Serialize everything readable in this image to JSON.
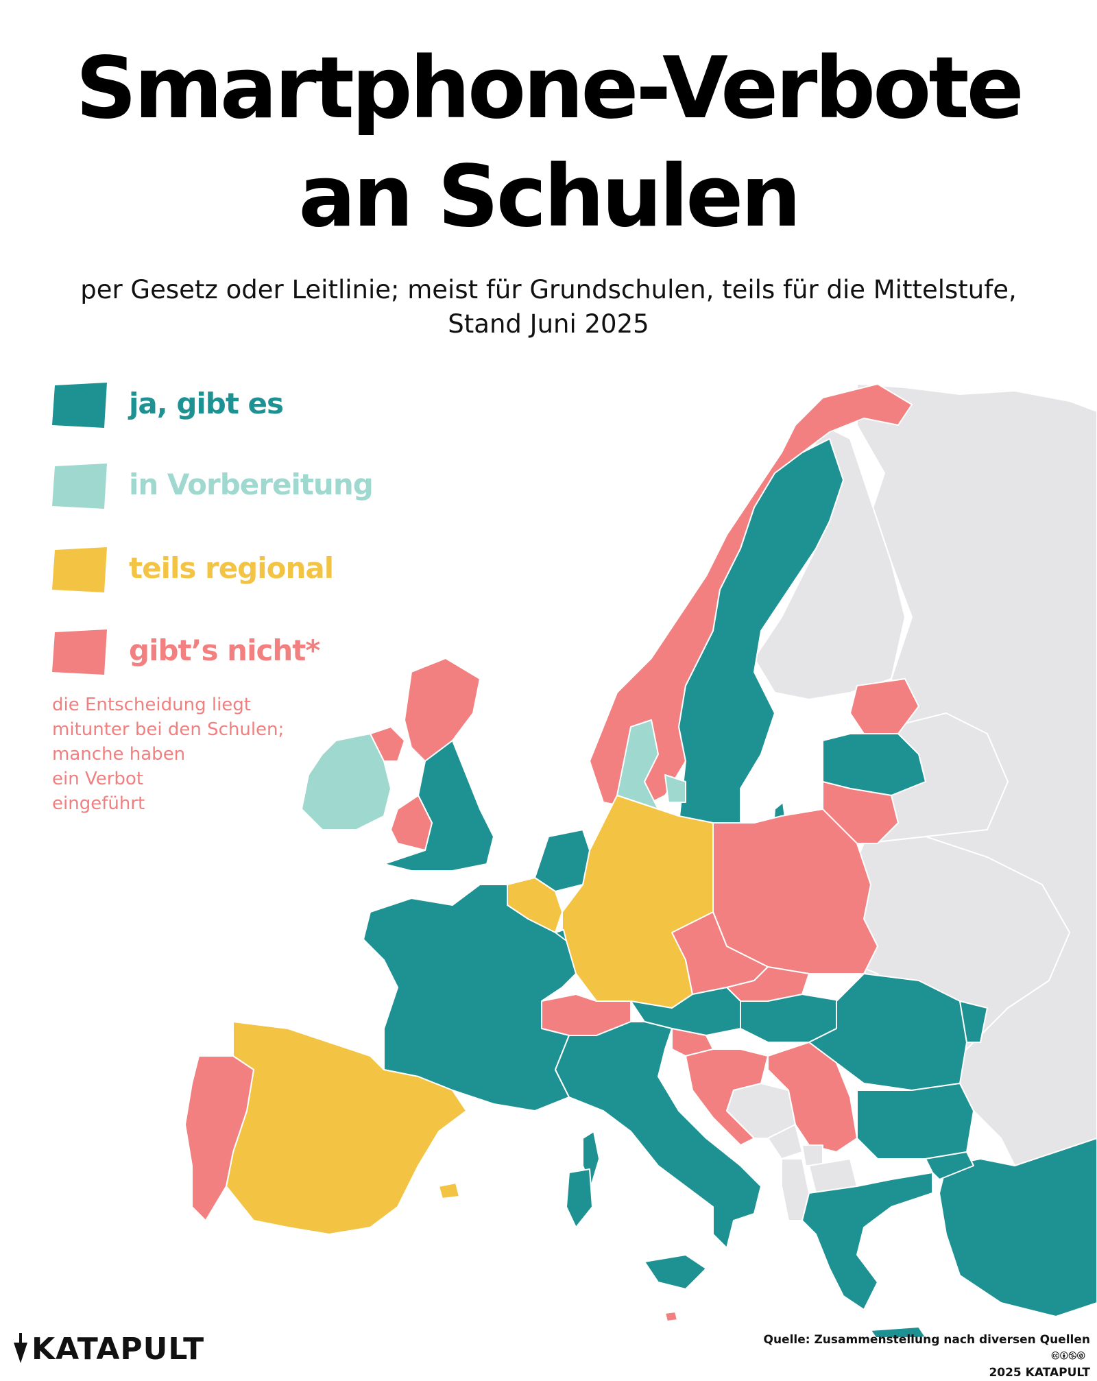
{
  "title": {
    "line1": "Smartphone-Verbote",
    "line2": "an Schulen"
  },
  "subtitle": {
    "line1": "per Gesetz oder Leitlinie; meist für Grundschulen, teils für die Mittelstufe,",
    "line2": "Stand Juni 2025"
  },
  "legend": [
    {
      "label": "ja, gibt es",
      "color": "#1e9193",
      "category": "ja"
    },
    {
      "label": "in Vorbereitung",
      "color": "#9fd8cf",
      "category": "vorbereitung"
    },
    {
      "label": "teils regional",
      "color": "#f3c443",
      "category": "regional"
    },
    {
      "label": "gibt’s nicht*",
      "color": "#f28080",
      "category": "nicht"
    }
  ],
  "legend_note": {
    "lines": [
      "die Entscheidung liegt",
      "mitunter bei den Schulen;",
      "manche haben",
      "ein Verbot",
      "eingeführt"
    ]
  },
  "colors": {
    "ja": "#1e9193",
    "vorbereitung": "#9fd8cf",
    "regional": "#f3c443",
    "nicht": "#f28080",
    "no_data": "#e5e5e8",
    "border": "#ffffff",
    "background": "#ffffff"
  },
  "map_regions": [
    {
      "name": "Norwegen",
      "category": "nicht"
    },
    {
      "name": "Schweden",
      "category": "ja"
    },
    {
      "name": "Finnland",
      "category": "no_data"
    },
    {
      "name": "Dänemark",
      "category": "vorbereitung"
    },
    {
      "name": "Estland",
      "category": "nicht"
    },
    {
      "name": "Lettland",
      "category": "ja"
    },
    {
      "name": "Litauen",
      "category": "nicht"
    },
    {
      "name": "Irland",
      "category": "vorbereitung"
    },
    {
      "name": "Nordirland",
      "category": "nicht"
    },
    {
      "name": "Schottland",
      "category": "nicht"
    },
    {
      "name": "Wales",
      "category": "nicht"
    },
    {
      "name": "England",
      "category": "ja"
    },
    {
      "name": "Niederlande",
      "category": "ja"
    },
    {
      "name": "Belgien",
      "category": "regional"
    },
    {
      "name": "Luxemburg",
      "category": "ja"
    },
    {
      "name": "Deutschland",
      "category": "regional"
    },
    {
      "name": "Polen",
      "category": "nicht"
    },
    {
      "name": "Tschechien",
      "category": "nicht"
    },
    {
      "name": "Slowakei",
      "category": "nicht"
    },
    {
      "name": "Frankreich",
      "category": "ja"
    },
    {
      "name": "Schweiz",
      "category": "nicht"
    },
    {
      "name": "Österreich",
      "category": "ja"
    },
    {
      "name": "Ungarn",
      "category": "ja"
    },
    {
      "name": "Rumänien",
      "category": "ja"
    },
    {
      "name": "Moldau",
      "category": "ja"
    },
    {
      "name": "Spanien",
      "category": "regional"
    },
    {
      "name": "Portugal",
      "category": "nicht"
    },
    {
      "name": "Italien",
      "category": "ja"
    },
    {
      "name": "Slowenien",
      "category": "nicht"
    },
    {
      "name": "Kroatien",
      "category": "nicht"
    },
    {
      "name": "Serbien",
      "category": "nicht"
    },
    {
      "name": "Bosnien und Herzegowina",
      "category": "no_data"
    },
    {
      "name": "Montenegro",
      "category": "no_data"
    },
    {
      "name": "Kosovo",
      "category": "no_data"
    },
    {
      "name": "Albanien",
      "category": "no_data"
    },
    {
      "name": "Nordmazedonien",
      "category": "no_data"
    },
    {
      "name": "Bulgarien",
      "category": "ja"
    },
    {
      "name": "Griechenland",
      "category": "ja"
    },
    {
      "name": "Türkei",
      "category": "ja"
    },
    {
      "name": "Malta",
      "category": "nicht"
    },
    {
      "name": "Ukraine",
      "category": "no_data"
    },
    {
      "name": "Belarus",
      "category": "no_data"
    },
    {
      "name": "Russland",
      "category": "no_data"
    }
  ],
  "logo": {
    "text": "KATAPULT",
    "icon": "katapult-logo-icon"
  },
  "source": {
    "line1": "Quelle: Zusammenstellung nach diversen Quellen",
    "license_icons": "🅭🅯🄏🄍",
    "line2": "2025 KATAPULT"
  }
}
